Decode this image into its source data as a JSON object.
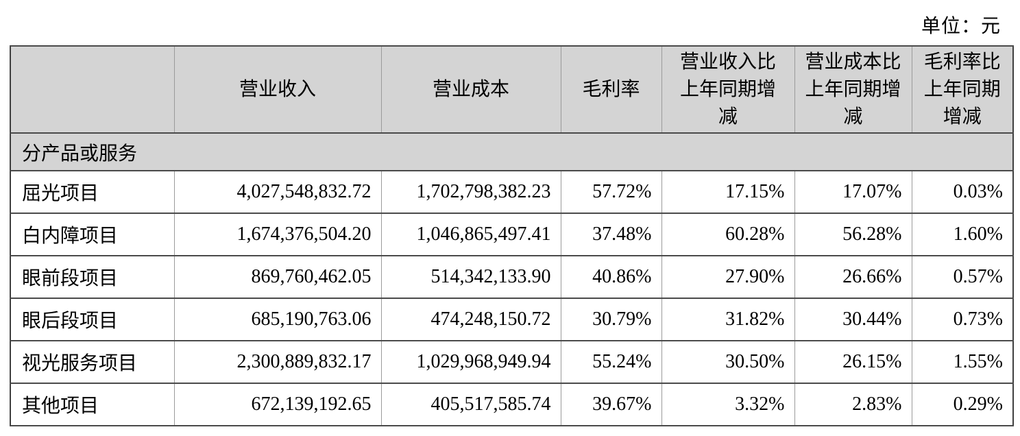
{
  "page": {
    "unit_label": "单位：元"
  },
  "table": {
    "section_header": "分产品或服务",
    "columns": [
      {
        "label": ""
      },
      {
        "label": "营业收入"
      },
      {
        "label": "营业成本"
      },
      {
        "label": "毛利率"
      },
      {
        "label": "营业收入比\n上年同期增\n减"
      },
      {
        "label": "营业成本比\n上年同期增\n减"
      },
      {
        "label": "毛利率比\n上年同期\n增减"
      }
    ],
    "rows": [
      {
        "name": "屈光项目",
        "revenue": "4,027,548,832.72",
        "cost": "1,702,798,382.23",
        "gross_margin": "57.72%",
        "revenue_yoy_change": "17.15%",
        "cost_yoy_change": "17.07%",
        "gross_margin_yoy_change": "0.03%"
      },
      {
        "name": "白内障项目",
        "revenue": "1,674,376,504.20",
        "cost": "1,046,865,497.41",
        "gross_margin": "37.48%",
        "revenue_yoy_change": "60.28%",
        "cost_yoy_change": "56.28%",
        "gross_margin_yoy_change": "1.60%"
      },
      {
        "name": "眼前段项目",
        "revenue": "869,760,462.05",
        "cost": "514,342,133.90",
        "gross_margin": "40.86%",
        "revenue_yoy_change": "27.90%",
        "cost_yoy_change": "26.66%",
        "gross_margin_yoy_change": "0.57%"
      },
      {
        "name": "眼后段项目",
        "revenue": "685,190,763.06",
        "cost": "474,248,150.72",
        "gross_margin": "30.79%",
        "revenue_yoy_change": "31.82%",
        "cost_yoy_change": "30.44%",
        "gross_margin_yoy_change": "0.73%"
      },
      {
        "name": "视光服务项目",
        "revenue": "2,300,889,832.17",
        "cost": "1,029,968,949.94",
        "gross_margin": "55.24%",
        "revenue_yoy_change": "30.50%",
        "cost_yoy_change": "26.15%",
        "gross_margin_yoy_change": "1.55%"
      },
      {
        "name": "其他项目",
        "revenue": "672,139,192.65",
        "cost": "405,517,585.74",
        "gross_margin": "39.67%",
        "revenue_yoy_change": "3.32%",
        "cost_yoy_change": "2.83%",
        "gross_margin_yoy_change": "0.29%"
      }
    ]
  }
}
